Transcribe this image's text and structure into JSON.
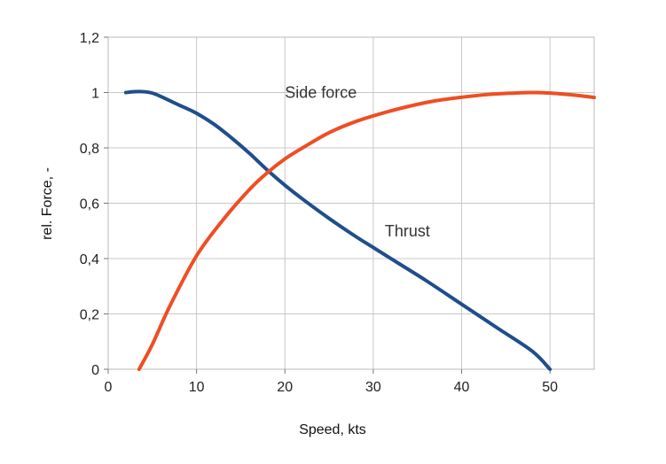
{
  "chart_data": {
    "type": "line",
    "title": "",
    "xlabel": "Speed, kts",
    "ylabel": "rel. Force, -",
    "xlim": [
      0,
      55
    ],
    "ylim": [
      0,
      1.2
    ],
    "grid": true,
    "xticks": [
      0,
      10,
      20,
      30,
      40,
      50
    ],
    "xtick_labels": [
      "0",
      "10",
      "20",
      "30",
      "40",
      "50"
    ],
    "yticks": [
      0,
      0.2,
      0.4,
      0.6,
      0.8,
      1.0,
      1.2
    ],
    "ytick_labels": [
      "0",
      "0,2",
      "0,4",
      "0,6",
      "0,8",
      "1",
      "1,2"
    ],
    "series": [
      {
        "name": "Thrust",
        "color": "#1f4e8c",
        "x": [
          2,
          3,
          4,
          5,
          6,
          8,
          10,
          12,
          14,
          16,
          18,
          20,
          22,
          25,
          28,
          30,
          33,
          36,
          40,
          44,
          48,
          50
        ],
        "y": [
          1.0,
          1.003,
          1.003,
          0.998,
          0.985,
          0.955,
          0.925,
          0.885,
          0.835,
          0.78,
          0.72,
          0.665,
          0.615,
          0.545,
          0.48,
          0.44,
          0.38,
          0.32,
          0.235,
          0.15,
          0.065,
          0.0
        ]
      },
      {
        "name": "Side force",
        "color": "#ee4e23",
        "x": [
          3.5,
          5,
          7,
          10,
          13,
          16,
          18,
          20,
          22,
          25,
          28,
          31,
          34,
          37,
          40,
          43,
          46,
          48,
          50,
          53,
          55
        ],
        "y": [
          0.0,
          0.09,
          0.23,
          0.41,
          0.54,
          0.65,
          0.71,
          0.76,
          0.8,
          0.855,
          0.895,
          0.925,
          0.95,
          0.97,
          0.983,
          0.993,
          0.998,
          1.0,
          0.998,
          0.99,
          0.982
        ]
      }
    ],
    "annotations": [
      {
        "text": "Side force",
        "x": 20,
        "y": 1.0
      },
      {
        "text": "Thrust",
        "x": 31.3,
        "y": 0.5
      }
    ]
  }
}
